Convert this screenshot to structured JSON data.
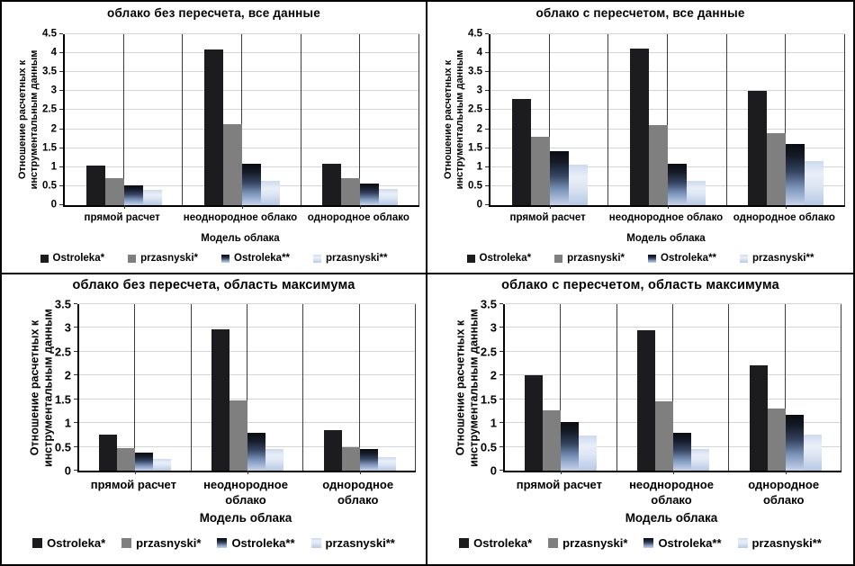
{
  "figure": {
    "description": "2x2 panel of clustered bar charts comparing calculated vs instrumental data ratios for cloud models",
    "colors": {
      "series_ostroleka1": "#1c1c1e",
      "series_przasnyski1": "#7f7f7f",
      "series_ostroleka2_gradient": [
        "#0a0c12",
        "#34435f",
        "#c6d3ea"
      ],
      "series_przasnyski2_gradient": [
        "#ccd9ee",
        "#e9eff8",
        "#b6c9e5"
      ],
      "gridline": "#d4d4d4",
      "category_line": "#3d3d3d",
      "axis": "#000000",
      "background": "#ffffff",
      "border": "#000000"
    }
  },
  "chart_data": [
    {
      "type": "bar",
      "title": "облако без пересчета, все данные",
      "ylabel_lines": [
        "Отношение расчетных к",
        "инструментальным данным"
      ],
      "xlabel": "Модель облака",
      "categories": [
        "прямой расчет",
        "неоднородное облако",
        "однородное облако"
      ],
      "ylim": [
        0,
        4.5
      ],
      "ystep": 0.5,
      "yticks": [
        "0",
        "0.5",
        "1",
        "1.5",
        "2",
        "2.5",
        "3",
        "3.5",
        "4",
        "4.5"
      ],
      "grid": "on",
      "legend_position": "bottom",
      "legend": [
        "Ostroleka*",
        "przasnyski*",
        "Ostroleka**",
        "przasnyski**"
      ],
      "series": [
        {
          "name": "Ostroleka*",
          "values": [
            1.05,
            4.1,
            1.1
          ]
        },
        {
          "name": "przasnyski*",
          "values": [
            0.7,
            2.13,
            0.72
          ]
        },
        {
          "name": "Ostroleka**",
          "values": [
            0.52,
            1.1,
            0.58
          ]
        },
        {
          "name": "przasnyski**",
          "values": [
            0.4,
            0.63,
            0.42
          ]
        }
      ]
    },
    {
      "type": "bar",
      "title": "облако с пересчетом, все данные",
      "ylabel_lines": [
        "Отношение расчетных к",
        "инструментальным данным"
      ],
      "xlabel": "Модель облака",
      "categories": [
        "прямой расчет",
        "неоднородное облако",
        "однородное облако"
      ],
      "ylim": [
        0,
        4.5
      ],
      "ystep": 0.5,
      "yticks": [
        "0",
        "0.5",
        "1",
        "1.5",
        "2",
        "2.5",
        "3",
        "3.5",
        "4",
        "4.5"
      ],
      "grid": "on",
      "legend_position": "bottom",
      "legend": [
        "Ostroleka*",
        "przasnyski*",
        "Ostroleka**",
        "przasnyski**"
      ],
      "series": [
        {
          "name": "Ostroleka*",
          "values": [
            2.8,
            4.12,
            3.02
          ]
        },
        {
          "name": "przasnyski*",
          "values": [
            1.8,
            2.1,
            1.9
          ]
        },
        {
          "name": "Ostroleka**",
          "values": [
            1.43,
            1.08,
            1.6
          ]
        },
        {
          "name": "przasnyski**",
          "values": [
            1.07,
            0.65,
            1.15
          ]
        }
      ]
    },
    {
      "type": "bar",
      "title": "облако без пересчета, область максимума",
      "ylabel_lines": [
        "Отношение расчетных к",
        "инструментальным данным"
      ],
      "xlabel": "Модель облака",
      "categories": [
        "прямой расчет",
        "неоднородное облако",
        "однородное облако"
      ],
      "ylim": [
        0,
        3.5
      ],
      "ystep": 0.5,
      "yticks": [
        "0",
        "0.5",
        "1",
        "1.5",
        "2",
        "2.5",
        "3",
        "3.5"
      ],
      "grid": "on",
      "legend_position": "bottom",
      "legend": [
        "Ostroleka*",
        "przasnyski*",
        "Ostroleka**",
        "przasnyski**"
      ],
      "series": [
        {
          "name": "Ostroleka*",
          "values": [
            0.75,
            2.97,
            0.85
          ]
        },
        {
          "name": "przasnyski*",
          "values": [
            0.48,
            1.47,
            0.5
          ]
        },
        {
          "name": "Ostroleka**",
          "values": [
            0.38,
            0.8,
            0.45
          ]
        },
        {
          "name": "przasnyski**",
          "values": [
            0.25,
            0.45,
            0.28
          ]
        }
      ]
    },
    {
      "type": "bar",
      "title": "облако с пересчетом, область максимума",
      "ylabel_lines": [
        "Отношение расчетных к",
        "инструментальным данным"
      ],
      "xlabel": "Модель облака",
      "categories": [
        "прямой расчет",
        "неоднородное облако",
        "однородное облако"
      ],
      "ylim": [
        0,
        3.5
      ],
      "ystep": 0.5,
      "yticks": [
        "0",
        "0.5",
        "1",
        "1.5",
        "2",
        "2.5",
        "3",
        "3.5"
      ],
      "grid": "on",
      "legend_position": "bottom",
      "legend": [
        "Ostroleka*",
        "przasnyski*",
        "Ostroleka**",
        "przasnyski**"
      ],
      "series": [
        {
          "name": "Ostroleka*",
          "values": [
            2.0,
            2.96,
            2.22
          ]
        },
        {
          "name": "przasnyski*",
          "values": [
            1.26,
            1.45,
            1.3
          ]
        },
        {
          "name": "Ostroleka**",
          "values": [
            1.02,
            0.8,
            1.17
          ]
        },
        {
          "name": "przasnyski**",
          "values": [
            0.73,
            0.45,
            0.76
          ]
        }
      ]
    }
  ]
}
